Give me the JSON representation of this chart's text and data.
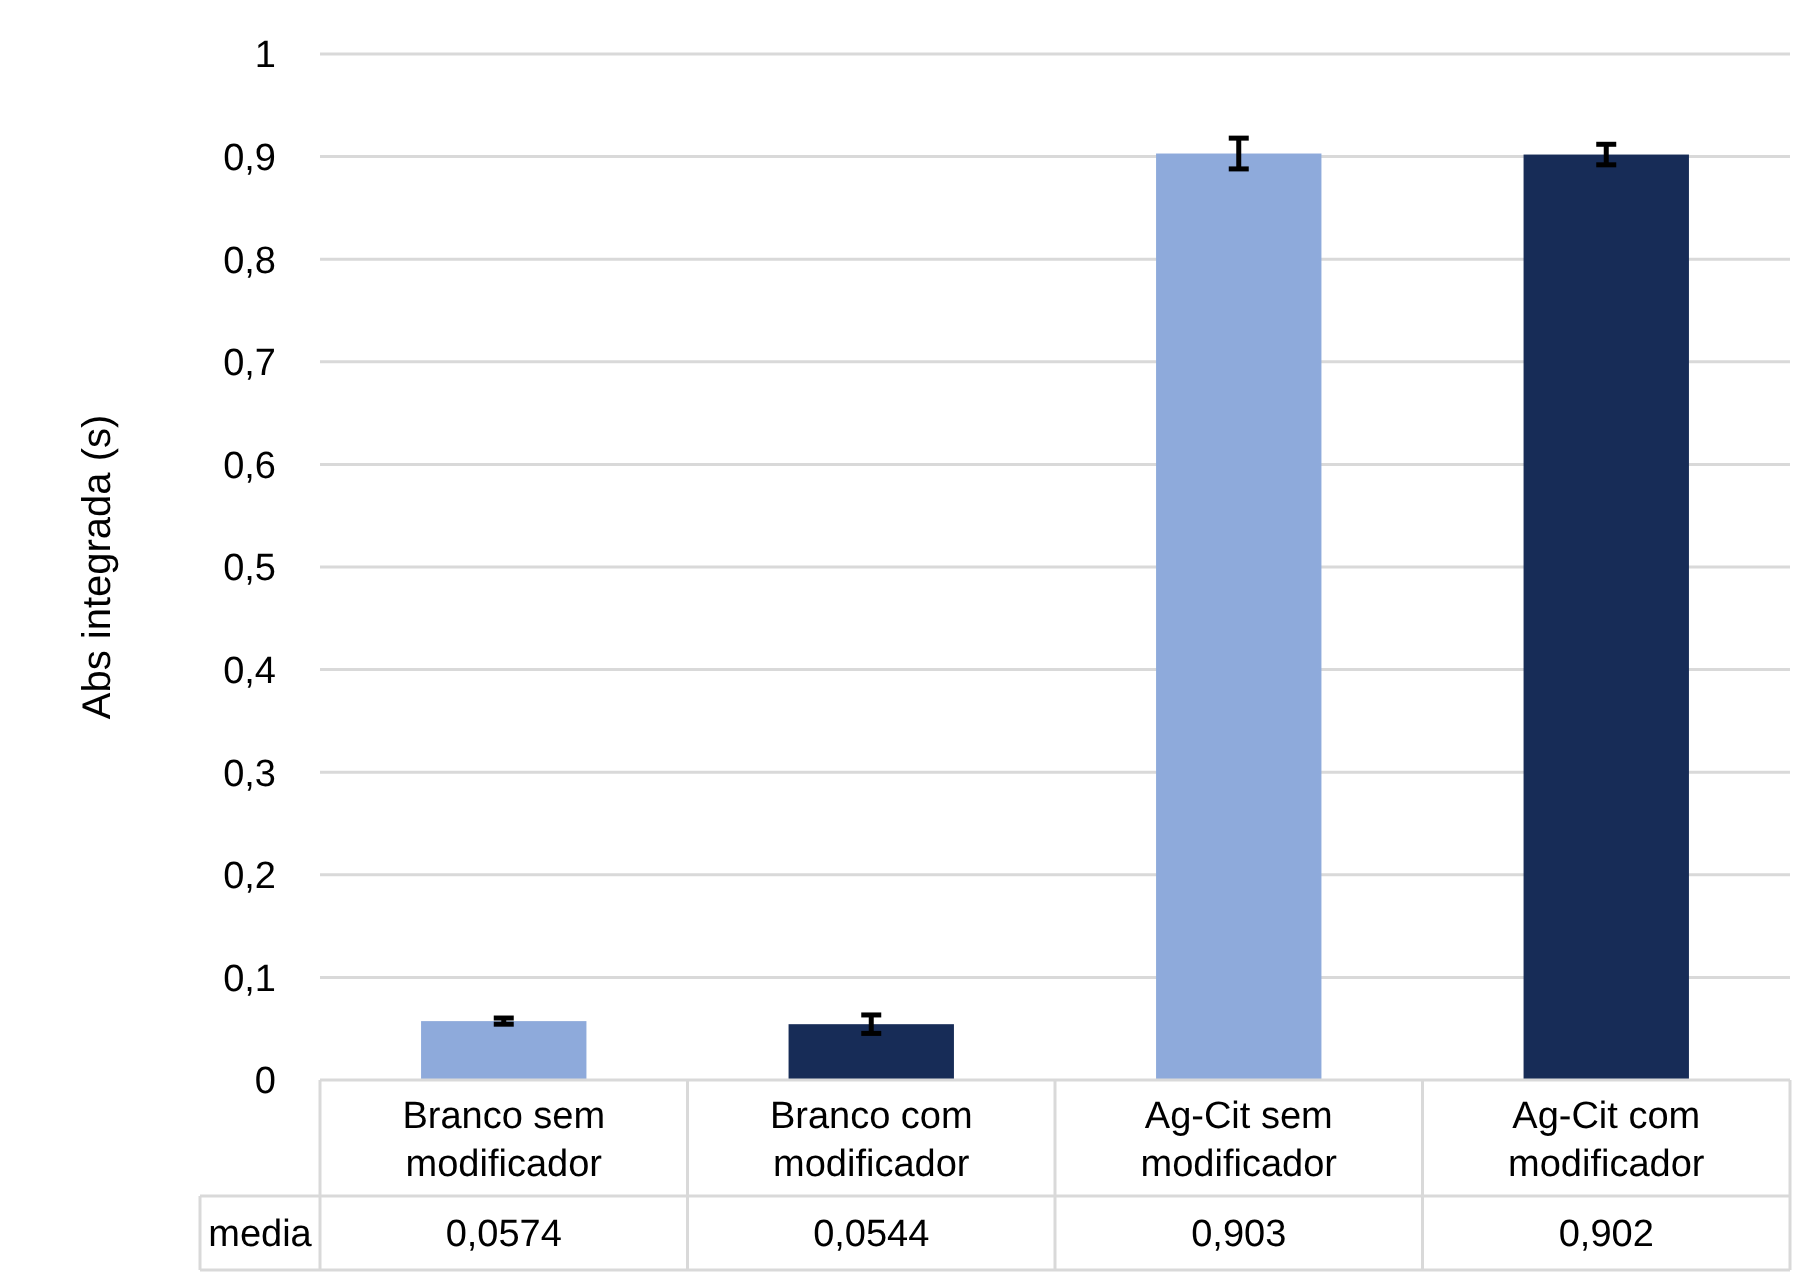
{
  "chart_data": {
    "type": "bar",
    "ylabel": "Abs integrada (s)",
    "categories": [
      "Branco sem modificador",
      "Branco com modificador",
      "Ag-Cit sem modificador",
      "Ag-Cit com modificador"
    ],
    "values": [
      0.0574,
      0.0544,
      0.903,
      0.902
    ],
    "colors": [
      "#8eaadb",
      "#172c57",
      "#8eaadb",
      "#172c57"
    ],
    "errors": [
      0.003,
      0.009,
      0.015,
      0.01
    ],
    "value_labels": [
      "0,0574",
      "0,0544",
      "0,903",
      "0,902"
    ],
    "annotations": [
      "media"
    ],
    "ylim": [
      0,
      1
    ],
    "yticks": [
      0,
      {
        "value": 0.1,
        "label": "0,1"
      },
      {
        "value": 0.2,
        "label": "0,2"
      },
      {
        "value": 0.3,
        "label": "0,3"
      },
      {
        "value": 0.4,
        "label": "0,4"
      },
      {
        "value": 0.5,
        "label": "0,5"
      },
      {
        "value": 0.6,
        "label": "0,6"
      },
      {
        "value": 0.7,
        "label": "0,7"
      },
      {
        "value": 0.8,
        "label": "0,8"
      },
      {
        "value": 0.9,
        "label": "0,9"
      },
      1
    ],
    "grid": "y"
  }
}
